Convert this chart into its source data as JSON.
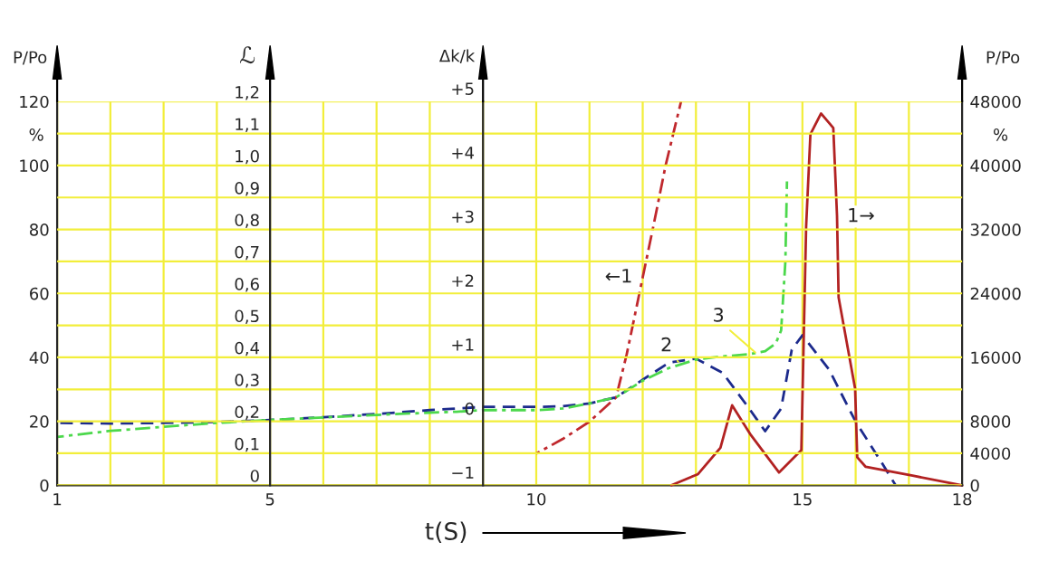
{
  "chart_data": {
    "type": "line",
    "xlabel": "t(S)",
    "ylabel": "P/Po",
    "y2label": "P/Po",
    "y3label": "ℒ",
    "xlim": [
      1,
      18
    ],
    "xticks": [
      1,
      {
        "value": 2,
        "label": null
      },
      {
        "value": 3,
        "label": null
      },
      {
        "value": 4,
        "label": null
      },
      5,
      {
        "value": 6,
        "label": null
      },
      {
        "value": 7,
        "label": null
      },
      {
        "value": 8,
        "label": null
      },
      {
        "value": 9,
        "label": null
      },
      10,
      {
        "value": 11,
        "label": null
      },
      {
        "value": 12,
        "label": null
      },
      {
        "value": 13,
        "label": null
      },
      {
        "value": 14,
        "label": null
      },
      15,
      {
        "value": 16,
        "label": null
      },
      {
        "value": 17,
        "label": null
      },
      18
    ],
    "ylim": [
      0,
      120
    ],
    "yticks": [
      0,
      20,
      40,
      60,
      80,
      100,
      120
    ],
    "y2lim": [
      0,
      48000
    ],
    "y2ticks": [
      0,
      4000,
      8000,
      16000,
      24000,
      32000,
      40000,
      48000
    ],
    "y3lim": [
      0,
      1.2
    ],
    "y3ticks": [
      0,
      {
        "value": 0.1,
        "label": "0,1"
      },
      {
        "value": 0.2,
        "label": "0,2"
      },
      {
        "value": 0.3,
        "label": "0,3"
      },
      {
        "value": 0.4,
        "label": "0,4"
      },
      {
        "value": 0.5,
        "label": "0,5"
      },
      {
        "value": 0.6,
        "label": "0,6"
      },
      {
        "value": 0.7,
        "label": "0,7"
      },
      {
        "value": 0.8,
        "label": "0,8"
      },
      {
        "value": 0.9,
        "label": "0,9"
      },
      {
        "value": 1.0,
        "label": "1,0"
      },
      {
        "value": 1.1,
        "label": "1,1"
      },
      {
        "value": 1.2,
        "label": "1,2"
      }
    ],
    "grid": true,
    "series": [
      {
        "color": "#c0282d",
        "line_style": "dashdot",
        "x": [
          10,
          10.5,
          11,
          11.5,
          11.7,
          12.0,
          12.2,
          12.43,
          12.72
        ],
        "values": [
          9.9,
          14.5,
          19.9,
          27.5,
          41,
          65,
          81,
          100,
          120
        ]
      },
      {
        "color": "#b22222",
        "line_style": "solid",
        "axis": "y2",
        "x": [
          12.54,
          13.04,
          13.46,
          13.68,
          14.03,
          14.56,
          14.98,
          15.07,
          15.15,
          15.35,
          15.58,
          15.65,
          15.68,
          15.99,
          16.03,
          16.19,
          17.07,
          18.0
        ],
        "values": [
          0,
          1400,
          4700,
          10000,
          6300,
          1600,
          4400,
          32400,
          43900,
          46500,
          44700,
          33700,
          23500,
          12100,
          3500,
          2300,
          1200,
          0
        ]
      },
      {
        "color": "#1c2a8c",
        "line_style": "dashed",
        "x": [
          1,
          2,
          3,
          4,
          5,
          6,
          7,
          8,
          8.5,
          9,
          10,
          10.5,
          11,
          11.5,
          12,
          12.5,
          13,
          13.5,
          14,
          14.3,
          14.6,
          14.8,
          15,
          15.5,
          16,
          16.5,
          16.75
        ],
        "values": [
          19.5,
          19.3,
          19.5,
          19.8,
          20.4,
          21.3,
          22.3,
          23.5,
          24,
          24.5,
          24.5,
          24.7,
          25.6,
          27.5,
          33,
          38.4,
          39.6,
          35.2,
          24,
          16.9,
          24,
          42.4,
          46.9,
          36.2,
          19.9,
          6.8,
          0
        ]
      },
      {
        "color": "#4cd84c",
        "line_style": "dashdot",
        "x": [
          1,
          2,
          3,
          4,
          5,
          6,
          7,
          8,
          8.5,
          9,
          10,
          10.5,
          11,
          11.5,
          12,
          12.5,
          13,
          13.5,
          14,
          14.3,
          14.5,
          14.6,
          14.68,
          14.71
        ],
        "values": [
          15.1,
          17,
          18.3,
          19.5,
          20.4,
          21.2,
          22,
          22.7,
          23,
          23.5,
          23.5,
          24,
          25.6,
          27.5,
          32.7,
          36.7,
          39.3,
          40.3,
          41,
          41.9,
          44.4,
          48.4,
          70,
          95
        ]
      }
    ],
    "annotations": [
      {
        "text": "←1",
        "x": 12.0,
        "y": 65
      },
      {
        "text": "1→",
        "x": 15.65,
        "y": 84
      },
      {
        "text": "2",
        "x": 12.7,
        "y": 38
      },
      {
        "text": "3",
        "x": 14.15,
        "y": 41
      },
      "%",
      "%",
      "Δk/k",
      "−1",
      "0",
      "+1",
      "+2",
      "+3",
      "+4",
      "+5"
    ]
  }
}
